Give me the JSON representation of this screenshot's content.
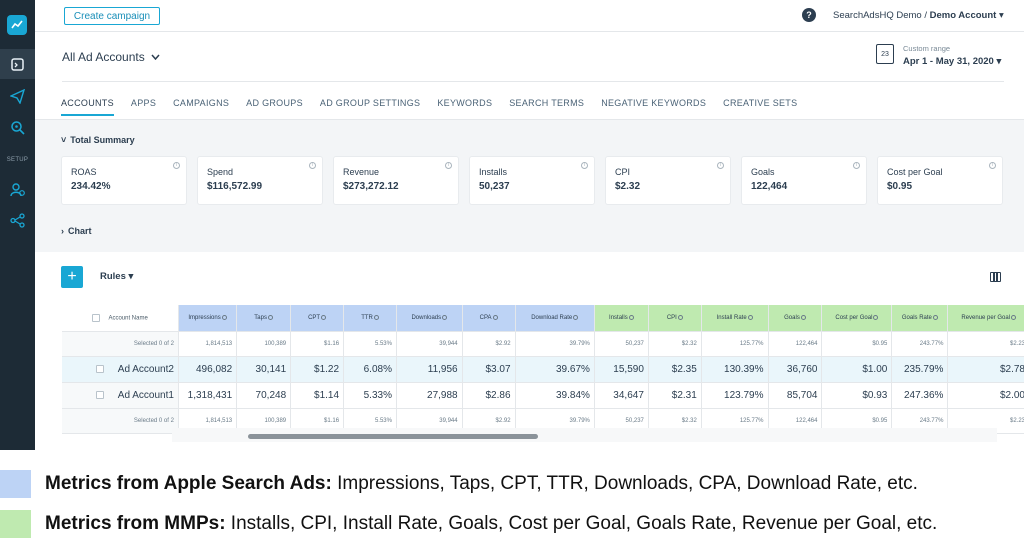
{
  "sidebar": {
    "setup_label": "SETUP",
    "icons": [
      "logo-icon",
      "reports-icon",
      "campaign-send-icon",
      "search-target-icon",
      "goals-icon",
      "integrations-icon"
    ]
  },
  "topbar": {
    "create_campaign": "Create campaign",
    "help_icon": "?",
    "account_org": "SearchAdsHQ Demo /",
    "account_name": "Demo Account"
  },
  "header": {
    "account_selector": "All Ad Accounts",
    "range_label": "Custom range",
    "range_value": "Apr 1 - May 31, 2020",
    "calendar_day": "23",
    "tabs": [
      "ACCOUNTS",
      "APPS",
      "CAMPAIGNS",
      "AD GROUPS",
      "AD GROUP SETTINGS",
      "KEYWORDS",
      "SEARCH TERMS",
      "NEGATIVE KEYWORDS",
      "CREATIVE SETS"
    ],
    "active_tab": "ACCOUNTS"
  },
  "summary": {
    "title": "Total Summary",
    "chart_title": "Chart",
    "cards": [
      {
        "label": "ROAS",
        "value": "234.42%"
      },
      {
        "label": "Spend",
        "value": "$116,572.99"
      },
      {
        "label": "Revenue",
        "value": "$273,272.12"
      },
      {
        "label": "Installs",
        "value": "50,237"
      },
      {
        "label": "CPI",
        "value": "$2.32"
      },
      {
        "label": "Goals",
        "value": "122,464"
      },
      {
        "label": "Cost per Goal",
        "value": "$0.95"
      }
    ]
  },
  "table": {
    "rules_label": "Rules",
    "plus_label": "+",
    "account_name_header": "Account Name",
    "asa_headers": [
      "Impressions",
      "Taps",
      "CPT",
      "TTR",
      "Downloads",
      "CPA",
      "Download Rate"
    ],
    "mmp_headers": [
      "Installs",
      "CPI",
      "Install Rate",
      "Goals",
      "Cost per Goal",
      "Goals Rate",
      "Revenue per Goal"
    ],
    "summary_top": {
      "label": "Selected 0 of 2",
      "values": [
        "1,814,513",
        "100,389",
        "$1.16",
        "5.53%",
        "39,944",
        "$2.92",
        "39.79%",
        "50,237",
        "$2.32",
        "125.77%",
        "122,464",
        "$0.95",
        "243.77%",
        "$2.23"
      ]
    },
    "rows": [
      {
        "name": "Ad Account2",
        "values": [
          "496,082",
          "30,141",
          "$1.22",
          "6.08%",
          "11,956",
          "$3.07",
          "39.67%",
          "15,590",
          "$2.35",
          "130.39%",
          "36,760",
          "$1.00",
          "235.79%",
          "$2.78"
        ]
      },
      {
        "name": "Ad Account1",
        "values": [
          "1,318,431",
          "70,248",
          "$1.14",
          "5.33%",
          "27,988",
          "$2.86",
          "39.84%",
          "34,647",
          "$2.31",
          "123.79%",
          "85,704",
          "$0.93",
          "247.36%",
          "$2.00"
        ]
      }
    ],
    "summary_bottom": {
      "label": "Selected 0 of 2",
      "values": [
        "1,814,513",
        "100,389",
        "$1.16",
        "5.53%",
        "39,944",
        "$2.92",
        "39.79%",
        "50,237",
        "$2.32",
        "125.77%",
        "122,464",
        "$0.95",
        "243.77%",
        "$2.23"
      ]
    }
  },
  "legend": {
    "asa_color": "#bdd3f5",
    "mmp_color": "#bfeab0",
    "asa_bold": "Metrics from Apple Search Ads:",
    "asa_text": " Impressions, Taps, CPT, TTR, Downloads, CPA, Download Rate, etc.",
    "mmp_bold": "Metrics from MMPs:",
    "mmp_text": " Installs, CPI, Install Rate, Goals, Cost per Goal, Goals Rate, Revenue per Goal, etc."
  }
}
